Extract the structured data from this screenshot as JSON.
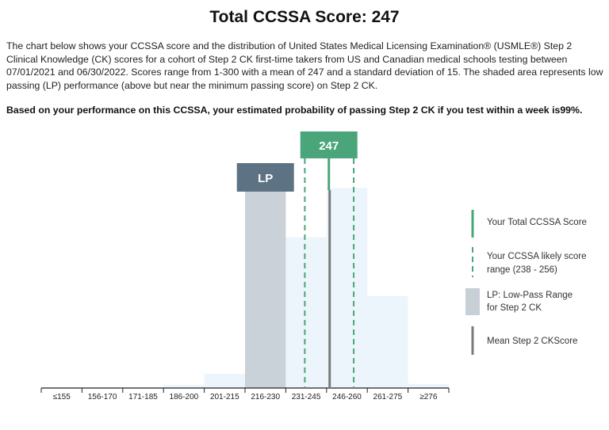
{
  "header": {
    "title": "Total CCSSA Score: 247",
    "description": "The chart below shows your CCSSA score and the distribution of United States Medical Licensing Examination® (USMLE®)  Step 2 Clinical Knowledge (CK) scores for a cohort of Step 2 CK first-time takers from US and Canadian medical schools  testing between 07/01/2021 and 06/30/2022. Scores range from 1-300 with a mean of 247 and a standard deviation of 15.  The shaded area represents low passing (LP) performance (above but near the minimum passing score) on Step 2 CK.",
    "probability_prefix": "Based on your performance on this CCSSA, your estimated probability of passing Step 2 CK if you test within a week is",
    "probability_value": "99%."
  },
  "colors": {
    "bar": "#e6f1f9",
    "lp_band": "#c7cfd7",
    "lp_label_bg": "#5d7282",
    "score_green": "#4aa57a",
    "mean_line": "#7a7a7a"
  },
  "chart_data": {
    "type": "bar",
    "categories": [
      "≤155",
      "156-170",
      "171-185",
      "186-200",
      "201-215",
      "216-230",
      "231-245",
      "246-260",
      "261-275",
      "≥276"
    ],
    "values": [
      0,
      0,
      0,
      0.5,
      2.4,
      10.5,
      25.4,
      33.7,
      15.5,
      0.7
    ],
    "value_unit": "percent of examinees (estimated)",
    "ylim": [
      0,
      40
    ],
    "your_score": 247,
    "your_score_label": "247",
    "likely_range": [
      238,
      256
    ],
    "mean": 247,
    "lp_range": [
      216,
      230
    ],
    "lp_label": "LP",
    "legend": [
      {
        "key": "score",
        "label_lines": [
          "Your Total CCSSA Score"
        ]
      },
      {
        "key": "range",
        "label_lines": [
          "Your CCSSA likely score",
          "range (238 - 256)"
        ]
      },
      {
        "key": "lp",
        "label_lines": [
          "LP: Low-Pass Range",
          "for Step 2 CK"
        ]
      },
      {
        "key": "mean",
        "label_lines": [
          "Mean Step 2 CKScore"
        ]
      }
    ]
  }
}
